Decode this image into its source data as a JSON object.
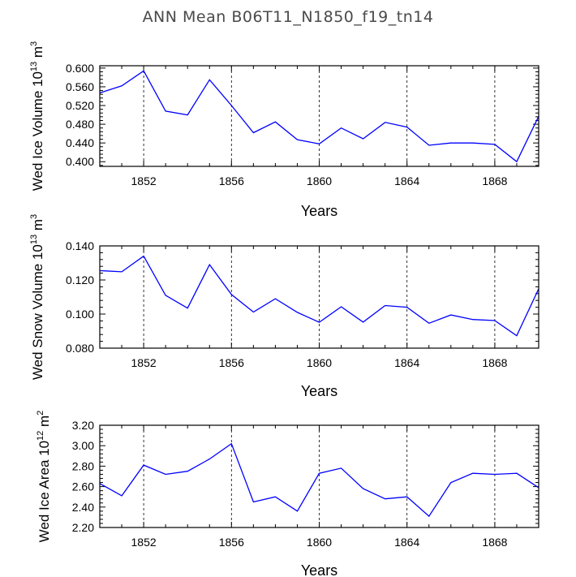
{
  "page_title": "ANN Mean B06T11_N1850_f19_tn14",
  "colors": {
    "line": "#0000ff",
    "axis": "#000000",
    "grid": "#000000"
  },
  "chart_data": [
    {
      "type": "line",
      "xlabel": "Years",
      "ylabel": {
        "main": "Wed Ice Volume 10",
        "exp1": "13",
        "mid": " m",
        "exp2": "3"
      },
      "xlim": [
        1850,
        1870
      ],
      "ylim": [
        0.39,
        0.605
      ],
      "x_ticks": [
        1852,
        1856,
        1860,
        1864,
        1868
      ],
      "x_tick_labels": [
        "1852",
        "1856",
        "1860",
        "1864",
        "1868"
      ],
      "y_ticks": [
        0.4,
        0.44,
        0.48,
        0.52,
        0.56,
        0.6
      ],
      "y_tick_labels": [
        "0.400",
        "0.440",
        "0.480",
        "0.520",
        "0.560",
        "0.600"
      ],
      "grid": "vertical dashed at major x ticks",
      "x": [
        1850,
        1851,
        1852,
        1853,
        1854,
        1855,
        1856,
        1857,
        1858,
        1859,
        1860,
        1861,
        1862,
        1863,
        1864,
        1865,
        1866,
        1867,
        1868,
        1869,
        1870
      ],
      "values": [
        0.547,
        0.562,
        0.594,
        0.508,
        0.5,
        0.575,
        0.52,
        0.462,
        0.485,
        0.447,
        0.438,
        0.472,
        0.449,
        0.484,
        0.474,
        0.435,
        0.44,
        0.44,
        0.437,
        0.4,
        0.497
      ]
    },
    {
      "type": "line",
      "xlabel": "Years",
      "ylabel": {
        "main": "Wed Snow Volume 10",
        "exp1": "13",
        "mid": " m",
        "exp2": "3"
      },
      "xlim": [
        1850,
        1870
      ],
      "ylim": [
        0.08,
        0.14
      ],
      "x_ticks": [
        1852,
        1856,
        1860,
        1864,
        1868
      ],
      "x_tick_labels": [
        "1852",
        "1856",
        "1860",
        "1864",
        "1868"
      ],
      "y_ticks": [
        0.08,
        0.1,
        0.12,
        0.14
      ],
      "y_tick_labels": [
        "0.080",
        "0.100",
        "0.120",
        "0.140"
      ],
      "grid": "vertical dashed at major x ticks",
      "x": [
        1850,
        1851,
        1852,
        1853,
        1854,
        1855,
        1856,
        1857,
        1858,
        1859,
        1860,
        1861,
        1862,
        1863,
        1864,
        1865,
        1866,
        1867,
        1868,
        1869,
        1870
      ],
      "values": [
        0.1255,
        0.1248,
        0.134,
        0.111,
        0.1035,
        0.129,
        0.1115,
        0.1012,
        0.109,
        0.101,
        0.0952,
        0.1043,
        0.0953,
        0.105,
        0.104,
        0.0946,
        0.0995,
        0.0968,
        0.0962,
        0.0873,
        0.1148
      ]
    },
    {
      "type": "line",
      "xlabel": "Years",
      "ylabel": {
        "main": "Wed Ice Area 10",
        "exp1": "12",
        "mid": " m",
        "exp2": "2"
      },
      "xlim": [
        1850,
        1870
      ],
      "ylim": [
        2.2,
        3.2
      ],
      "x_ticks": [
        1852,
        1856,
        1860,
        1864,
        1868
      ],
      "x_tick_labels": [
        "1852",
        "1856",
        "1860",
        "1864",
        "1868"
      ],
      "y_ticks": [
        2.2,
        2.4,
        2.6,
        2.8,
        3.0,
        3.2
      ],
      "y_tick_labels": [
        "2.20",
        "2.40",
        "2.60",
        "2.80",
        "3.00",
        "3.20"
      ],
      "grid": "vertical dashed at major x ticks",
      "x": [
        1850,
        1851,
        1852,
        1853,
        1854,
        1855,
        1856,
        1857,
        1858,
        1859,
        1860,
        1861,
        1862,
        1863,
        1864,
        1865,
        1866,
        1867,
        1868,
        1869,
        1870
      ],
      "values": [
        2.63,
        2.51,
        2.81,
        2.72,
        2.75,
        2.87,
        3.02,
        2.45,
        2.5,
        2.36,
        2.73,
        2.78,
        2.58,
        2.48,
        2.5,
        2.31,
        2.64,
        2.73,
        2.72,
        2.73,
        2.59
      ]
    }
  ]
}
